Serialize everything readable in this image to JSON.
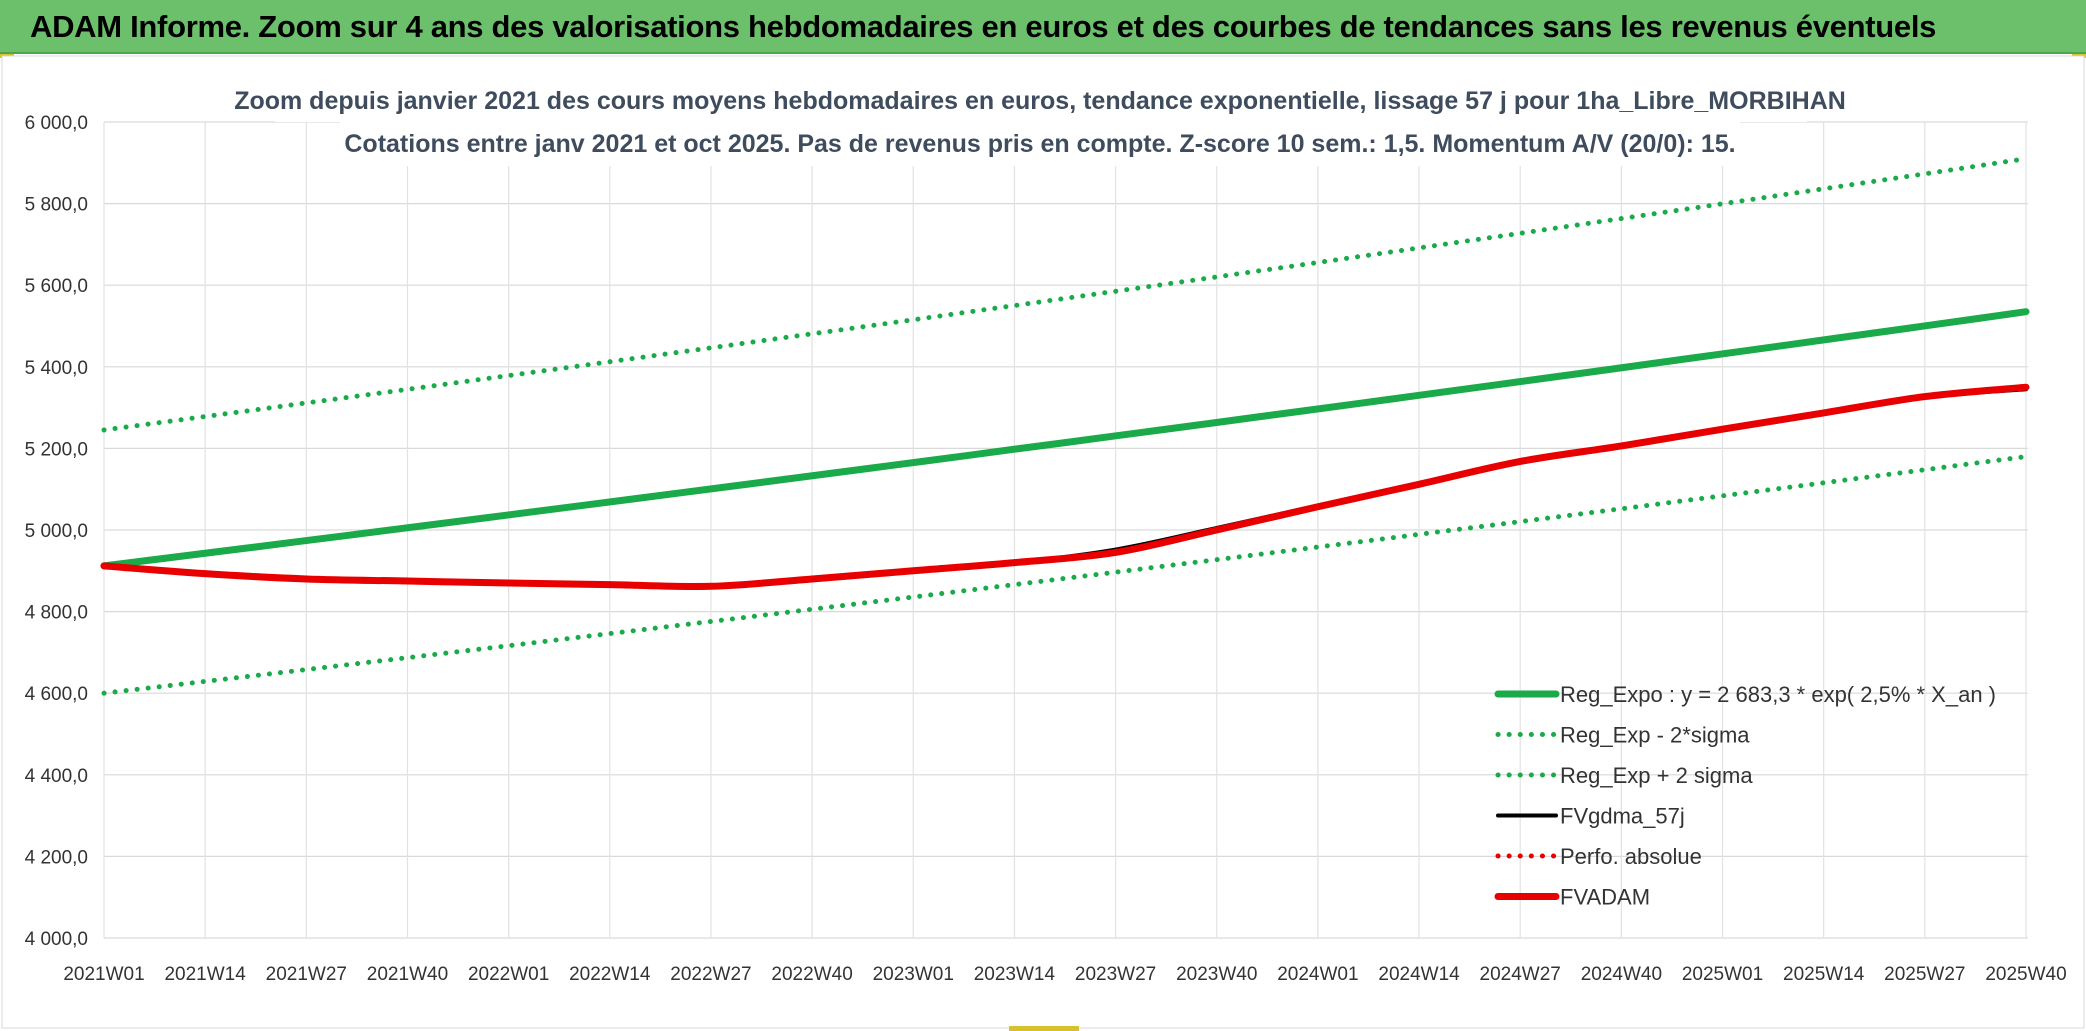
{
  "header": {
    "title": "ADAM Informe. Zoom sur 4 ans des valorisations hebdomadaires en euros et des courbes de tendances sans les revenus éventuels"
  },
  "chart_data": {
    "type": "line",
    "title_line1": "Zoom depuis janvier 2021 des cours moyens hebdomadaires en euros, tendance exponentielle, lissage 57 j pour 1ha_Libre_MORBIHAN",
    "title_line2": "Cotations entre janv 2021 et oct 2025. Pas de revenus pris en compte. Z-score 10 sem.: 1,5. Momentum A/V (20/0): 15.",
    "y_ticks": [
      "6 000,0",
      "5 800,0",
      "5 600,0",
      "5 400,0",
      "5 200,0",
      "5 000,0",
      "4 800,0",
      "4 600,0",
      "4 400,0",
      "4 200,0",
      "4 000,0"
    ],
    "ylim": [
      4000,
      6000
    ],
    "x_ticks": [
      "2021W01",
      "2021W14",
      "2021W27",
      "2021W40",
      "2022W01",
      "2022W14",
      "2022W27",
      "2022W40",
      "2023W01",
      "2023W14",
      "2023W27",
      "2023W40",
      "2024W01",
      "2024W14",
      "2024W27",
      "2024W40",
      "2025W01",
      "2025W14",
      "2025W27",
      "2025W40"
    ],
    "grid": true,
    "legend_position": "bottom-right",
    "colors": {
      "green": "#1aaa4a",
      "black": "#000000",
      "red": "#e80000"
    },
    "series": [
      {
        "name": "Reg_Expo : y = 2 683,3 * exp( 2,5% * X_an )",
        "style": "solid-thick",
        "color": "#1aaa4a",
        "x_index": [
          0,
          19
        ],
        "values": [
          4912,
          5535
        ]
      },
      {
        "name": "Reg_Exp - 2*sigma",
        "style": "dotted",
        "color": "#1aaa4a",
        "x_index": [
          0,
          19
        ],
        "values": [
          4600,
          5180
        ]
      },
      {
        "name": "Reg_Exp + 2 sigma",
        "style": "dotted",
        "color": "#1aaa4a",
        "x_index": [
          0,
          19
        ],
        "values": [
          5245,
          5910
        ]
      },
      {
        "name": "FVgdma_57j",
        "style": "solid",
        "color": "#000000",
        "x_index": [
          0,
          1,
          2,
          3,
          4,
          5,
          6,
          7,
          8,
          9,
          10,
          11,
          12,
          13,
          14,
          15,
          16,
          17,
          18,
          19
        ],
        "values": [
          4912,
          4893,
          4880,
          4875,
          4870,
          4866,
          4864,
          4880,
          4900,
          4920,
          4952,
          5005,
          5060,
          5115,
          5165,
          5205,
          5245,
          5285,
          5325,
          5345
        ]
      },
      {
        "name": "Perfo. absolue",
        "style": "dotted",
        "color": "#e80000",
        "x_index": [],
        "values": []
      },
      {
        "name": "FVADAM",
        "style": "solid-thick",
        "color": "#e80000",
        "x_index": [
          0,
          1,
          2,
          3,
          4,
          5,
          6,
          7,
          8,
          9,
          10,
          11,
          12,
          13,
          14,
          15,
          16,
          17,
          18,
          19
        ],
        "values": [
          4912,
          4893,
          4880,
          4875,
          4870,
          4866,
          4862,
          4880,
          4900,
          4920,
          4945,
          5000,
          5057,
          5112,
          5168,
          5206,
          5247,
          5287,
          5327,
          5350
        ]
      }
    ]
  }
}
